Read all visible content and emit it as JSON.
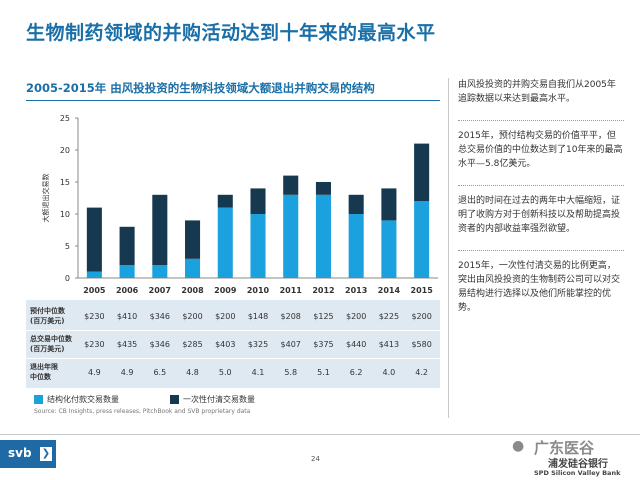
{
  "title": "生物制药领域的并购活动达到十年来的最高水平",
  "chart_header": "2005-2015年 由风投投资的生物科技领域大额退出并购交易的结构",
  "chart_data": {
    "type": "bar",
    "stacked": true,
    "categories": [
      "2005",
      "2006",
      "2007",
      "2008",
      "2009",
      "2010",
      "2011",
      "2012",
      "2013",
      "2014",
      "2015"
    ],
    "series": [
      {
        "name": "结构化付款交易数量",
        "color": "#1ba1de",
        "values": [
          1,
          2,
          2,
          3,
          11,
          10,
          13,
          13,
          10,
          9,
          12
        ]
      },
      {
        "name": "一次性付清交易数量",
        "color": "#17394f",
        "values": [
          10,
          6,
          11,
          6,
          2,
          4,
          3,
          2,
          3,
          5,
          9
        ]
      }
    ],
    "ylabel": "大额退出交易数",
    "ylim": [
      0,
      25
    ],
    "yticks": [
      0,
      5,
      10,
      15,
      20,
      25
    ],
    "grid": false
  },
  "table": {
    "rows": [
      {
        "label": "预付中位数",
        "sublabel": "(百万美元)",
        "values": [
          "$230",
          "$410",
          "$346",
          "$200",
          "$200",
          "$148",
          "$208",
          "$125",
          "$200",
          "$225",
          "$200"
        ]
      },
      {
        "label": "总交易中位数",
        "sublabel": "(百万美元)",
        "values": [
          "$230",
          "$435",
          "$346",
          "$285",
          "$403",
          "$325",
          "$407",
          "$375",
          "$440",
          "$413",
          "$580"
        ]
      },
      {
        "label": "退出年限",
        "sublabel": "中位数",
        "values": [
          "4.9",
          "4.9",
          "6.5",
          "4.8",
          "5.0",
          "4.1",
          "5.8",
          "5.1",
          "6.2",
          "4.0",
          "4.2"
        ]
      }
    ]
  },
  "legend": {
    "structured": "结构化付款交易数量",
    "lump": "一次性付清交易数量",
    "structured_color": "#1ba1de",
    "lump_color": "#17394f"
  },
  "source": "Source: CB Insights, press releases, PitchBook and SVB proprietary data",
  "notes": [
    "由风投投资的并购交易自我们从2005年追踪数据以来达到最高水平。",
    "2015年，预付结构交易的价值平平，但总交易价值的中位数达到了10年来的最高水平—5.8亿美元。",
    "退出的时间在过去的两年中大幅缩短，证明了收购方对于创新科技以及帮助提高投资者的内部收益率强烈欲望。",
    "2015年，一次性付清交易的比例更高，突出由风投投资的生物制药公司可以对交易结构进行选择以及他们所能掌控的优势。"
  ],
  "footer": {
    "logo": "svb",
    "page": "24",
    "watermark": "广东医谷",
    "bank_cn": "浦发硅谷银行",
    "bank_en": "SPD Silicon Valley Bank"
  }
}
